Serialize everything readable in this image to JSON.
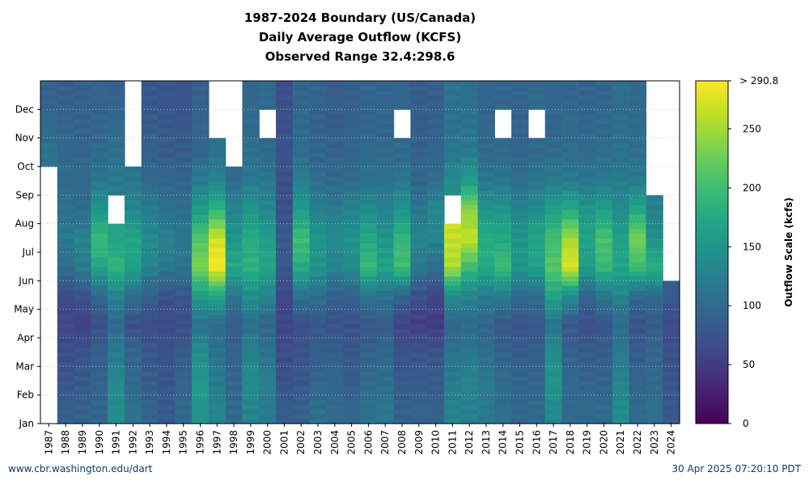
{
  "chart_data": {
    "type": "heatmap",
    "title_lines": [
      "1987-2024 Boundary (US/Canada)",
      "Daily Average Outflow (KCFS)",
      "Observed Range 32.4:298.6"
    ],
    "x": [
      "1987",
      "1988",
      "1989",
      "1990",
      "1991",
      "1992",
      "1993",
      "1994",
      "1995",
      "1996",
      "1997",
      "1998",
      "1999",
      "2000",
      "2001",
      "2002",
      "2003",
      "2004",
      "2005",
      "2006",
      "2007",
      "2008",
      "2009",
      "2010",
      "2011",
      "2012",
      "2013",
      "2014",
      "2015",
      "2016",
      "2017",
      "2018",
      "2019",
      "2020",
      "2021",
      "2022",
      "2023",
      "2024"
    ],
    "y_ticks": [
      "Jan",
      "Feb",
      "Mar",
      "Apr",
      "May",
      "Jun",
      "Jul",
      "Aug",
      "Sep",
      "Oct",
      "Nov",
      "Dec"
    ],
    "colorbar": {
      "label": "Outflow Scale (kcfs)",
      "min": 0,
      "max": 290.8,
      "ticks": [
        0,
        50,
        100,
        150,
        200,
        250
      ],
      "max_label": "> 290.8",
      "colormap": "viridis"
    },
    "monthly_means": [
      [
        null,
        null,
        null,
        null,
        null,
        null,
        null,
        null,
        null,
        110,
        100,
        90
      ],
      [
        88,
        78,
        70,
        62,
        68,
        105,
        118,
        108,
        100,
        98,
        92,
        88
      ],
      [
        92,
        82,
        75,
        55,
        75,
        120,
        130,
        105,
        100,
        95,
        90,
        88
      ],
      [
        95,
        92,
        88,
        72,
        100,
        170,
        195,
        150,
        115,
        100,
        95,
        92
      ],
      [
        140,
        135,
        120,
        100,
        130,
        190,
        170,
        null,
        120,
        105,
        100,
        90
      ],
      [
        110,
        100,
        95,
        70,
        105,
        165,
        170,
        135,
        115,
        null,
        null,
        null
      ],
      [
        92,
        85,
        80,
        68,
        90,
        130,
        140,
        120,
        100,
        90,
        85,
        80
      ],
      [
        82,
        78,
        72,
        65,
        75,
        118,
        125,
        110,
        95,
        85,
        80,
        78
      ],
      [
        100,
        92,
        85,
        70,
        80,
        112,
        115,
        105,
        92,
        85,
        80,
        78
      ],
      [
        150,
        155,
        140,
        110,
        160,
        235,
        210,
        160,
        120,
        95,
        92,
        90
      ],
      [
        130,
        120,
        110,
        100,
        170,
        290,
        270,
        190,
        130,
        110,
        null,
        null
      ],
      [
        100,
        95,
        92,
        85,
        115,
        175,
        150,
        130,
        100,
        null,
        null,
        null
      ],
      [
        130,
        140,
        125,
        105,
        145,
        185,
        180,
        150,
        120,
        105,
        100,
        95
      ],
      [
        120,
        125,
        110,
        95,
        130,
        170,
        160,
        135,
        115,
        100,
        null,
        100
      ],
      [
        85,
        72,
        70,
        60,
        62,
        80,
        85,
        70,
        70,
        75,
        70,
        72
      ],
      [
        90,
        80,
        75,
        70,
        110,
        180,
        200,
        160,
        125,
        105,
        100,
        95
      ],
      [
        105,
        95,
        88,
        80,
        105,
        150,
        150,
        125,
        105,
        95,
        90,
        92
      ],
      [
        100,
        95,
        88,
        75,
        90,
        130,
        140,
        120,
        100,
        90,
        85,
        85
      ],
      [
        95,
        85,
        80,
        72,
        90,
        140,
        145,
        130,
        105,
        95,
        90,
        88
      ],
      [
        110,
        100,
        90,
        80,
        115,
        195,
        175,
        140,
        110,
        100,
        95,
        95
      ],
      [
        115,
        105,
        95,
        85,
        110,
        170,
        150,
        130,
        110,
        100,
        95,
        95
      ],
      [
        90,
        85,
        75,
        60,
        95,
        200,
        190,
        150,
        115,
        100,
        null,
        95
      ],
      [
        92,
        85,
        75,
        55,
        70,
        120,
        130,
        115,
        95,
        90,
        85,
        85
      ],
      [
        90,
        85,
        75,
        50,
        60,
        105,
        130,
        135,
        105,
        95,
        90,
        88
      ],
      [
        130,
        120,
        110,
        95,
        140,
        255,
        265,
        null,
        140,
        115,
        110,
        110
      ],
      [
        125,
        130,
        115,
        100,
        130,
        200,
        265,
        240,
        160,
        120,
        110,
        105
      ],
      [
        120,
        120,
        105,
        95,
        120,
        175,
        180,
        150,
        115,
        100,
        95,
        95
      ],
      [
        105,
        100,
        90,
        80,
        125,
        200,
        175,
        150,
        115,
        100,
        null,
        95
      ],
      [
        95,
        92,
        85,
        75,
        100,
        150,
        150,
        130,
        105,
        95,
        92,
        92
      ],
      [
        100,
        95,
        88,
        80,
        105,
        165,
        170,
        140,
        115,
        100,
        null,
        100
      ],
      [
        135,
        150,
        140,
        110,
        170,
        215,
        200,
        165,
        120,
        100,
        95,
        95
      ],
      [
        100,
        100,
        90,
        80,
        140,
        275,
        250,
        175,
        120,
        105,
        100,
        95
      ],
      [
        100,
        92,
        85,
        70,
        95,
        160,
        170,
        150,
        115,
        100,
        95,
        92
      ],
      [
        100,
        92,
        85,
        78,
        115,
        195,
        205,
        165,
        120,
        105,
        100,
        95
      ],
      [
        140,
        130,
        120,
        100,
        130,
        170,
        165,
        140,
        120,
        110,
        105,
        105
      ],
      [
        100,
        92,
        85,
        75,
        100,
        200,
        230,
        175,
        120,
        105,
        100,
        98
      ],
      [
        105,
        100,
        95,
        85,
        100,
        185,
        145,
        125,
        null,
        null,
        null,
        null
      ],
      [
        80,
        78,
        72,
        68,
        85,
        null,
        null,
        null,
        null,
        null,
        null,
        null
      ]
    ]
  },
  "footer": {
    "left": "www.cbr.washington.edu/dart",
    "right": "30 Apr 2025 07:20:10 PDT"
  }
}
